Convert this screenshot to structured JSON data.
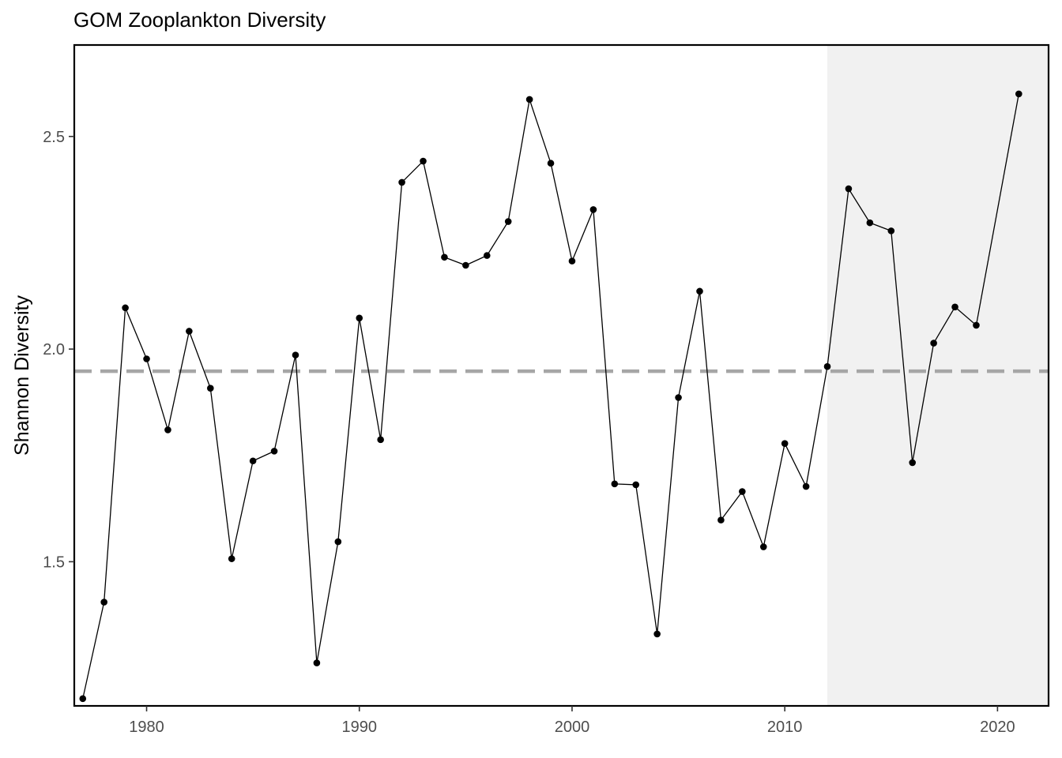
{
  "chart_data": {
    "type": "line",
    "title": "GOM Zooplankton Diversity",
    "xlabel": "",
    "ylabel": "Shannon Diversity",
    "xlim": [
      1976.6,
      2022.4
    ],
    "ylim": [
      1.161,
      2.715
    ],
    "x_ticks": [
      1980,
      1990,
      2000,
      2010,
      2020
    ],
    "y_ticks": [
      1.5,
      2.0,
      2.5
    ],
    "y_tick_labels": [
      "1.5",
      "2.0",
      "2.5"
    ],
    "grid": false,
    "reference_line": {
      "value": 1.948,
      "style": "dashed",
      "color": "#a6a6a6"
    },
    "shaded_region": {
      "x_start": 2012,
      "x_end": 2022.4,
      "color": "#f1f1f1"
    },
    "series_color": "#000000",
    "series": [
      {
        "x": [
          1977,
          1978,
          1979,
          1980,
          1981,
          1982,
          1983,
          1984,
          1985,
          1986,
          1987,
          1988,
          1989,
          1990,
          1991,
          1992,
          1993,
          1994,
          1995,
          1996,
          1997,
          1998,
          1999,
          2000,
          2001,
          2002,
          2003,
          2004,
          2005,
          2006,
          2007,
          2008,
          2009,
          2010,
          2011,
          2012,
          2013,
          2014,
          2015,
          2016,
          2017,
          2018,
          2019,
          2021
        ],
        "values": [
          1.178,
          1.405,
          2.097,
          1.977,
          1.81,
          2.042,
          1.908,
          1.507,
          1.737,
          1.76,
          1.986,
          1.262,
          1.547,
          2.073,
          1.787,
          2.392,
          2.442,
          2.216,
          2.197,
          2.22,
          2.3,
          2.587,
          2.437,
          2.207,
          2.328,
          1.683,
          1.681,
          1.33,
          1.886,
          2.136,
          1.598,
          1.665,
          1.535,
          1.778,
          1.677,
          1.959,
          2.377,
          2.297,
          2.278,
          1.733,
          2.014,
          2.099,
          2.056,
          2.6
        ]
      }
    ]
  }
}
